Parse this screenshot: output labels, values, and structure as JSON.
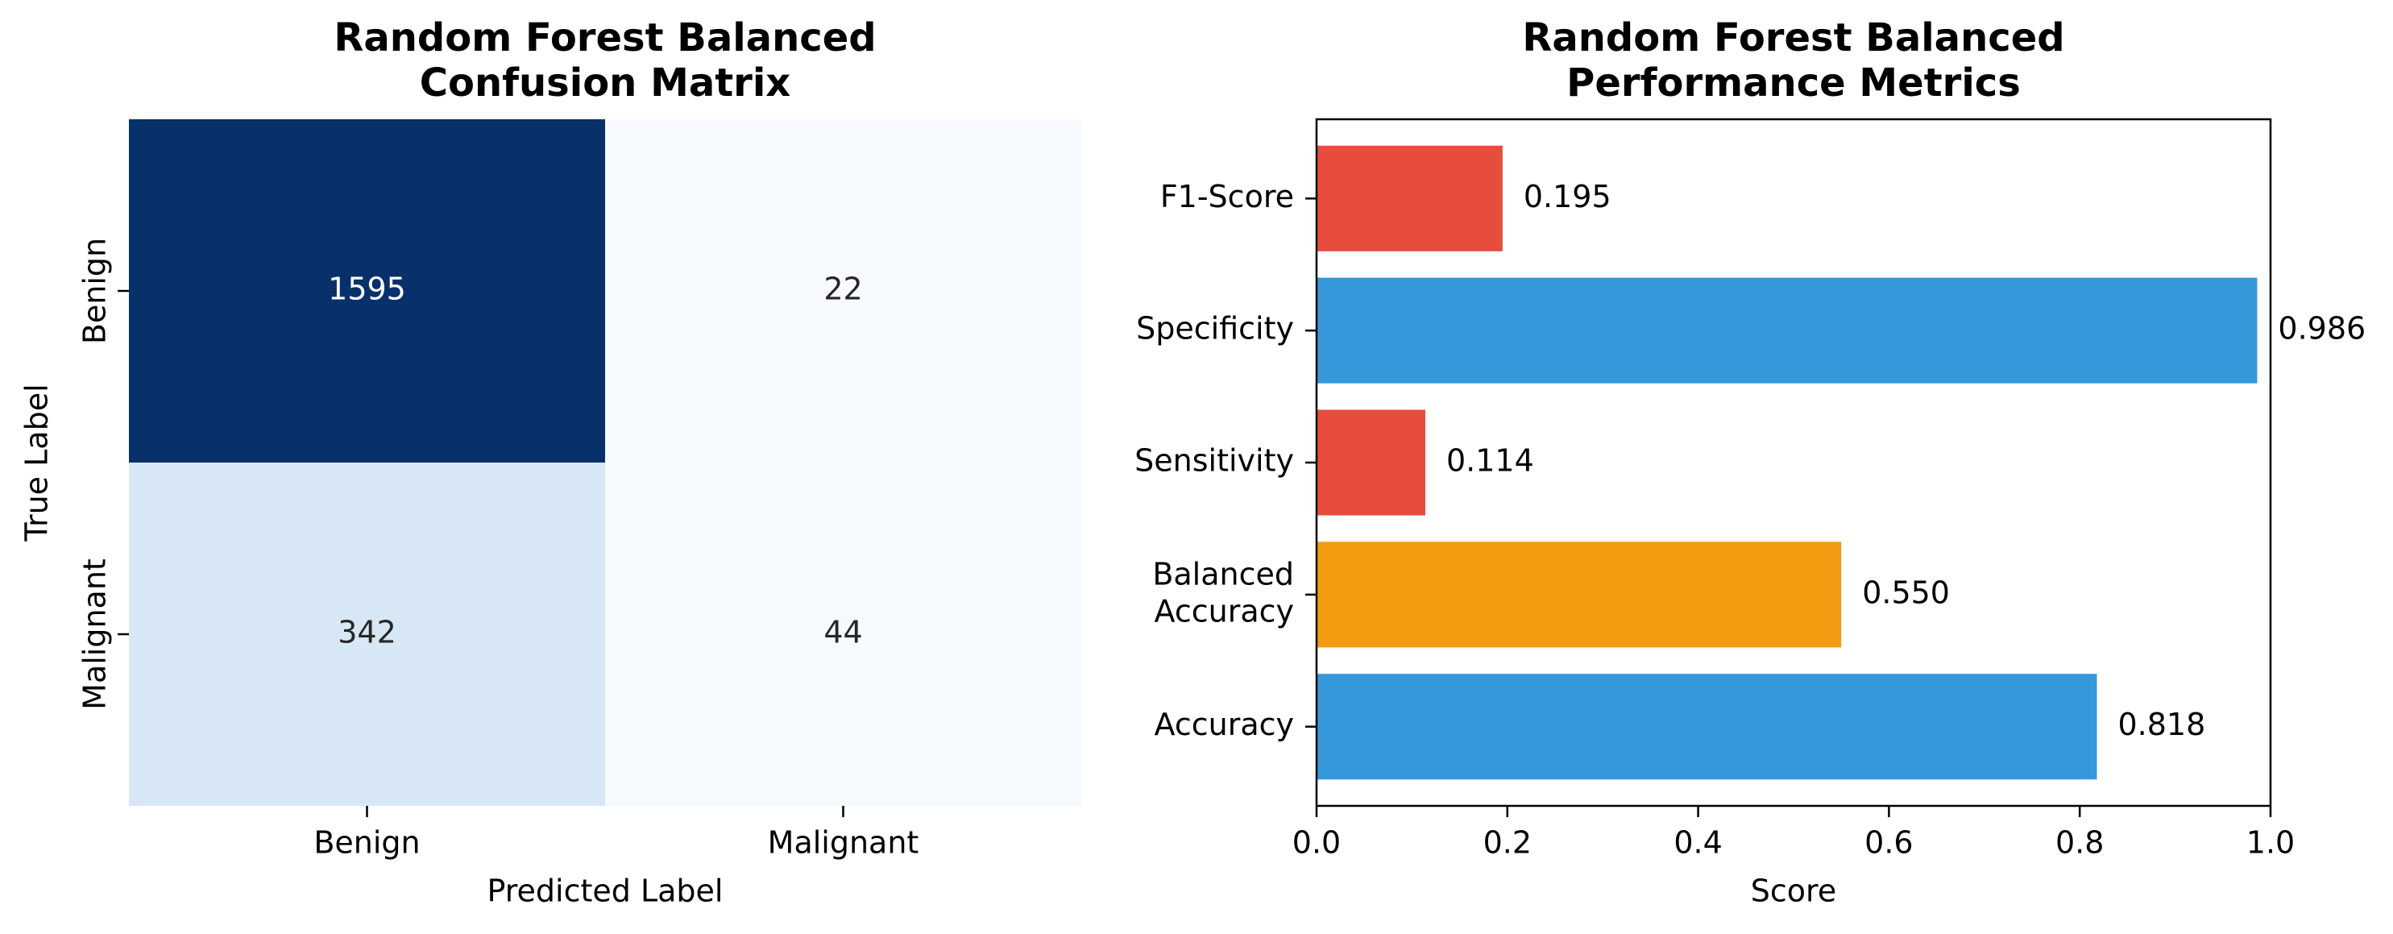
{
  "chart_data": [
    {
      "type": "heatmap",
      "title": "Random Forest Balanced\nConfusion Matrix",
      "xlabel": "Predicted Label",
      "ylabel": "True Label",
      "x_categories": [
        "Benign",
        "Malignant"
      ],
      "y_categories": [
        "Benign",
        "Malignant"
      ],
      "values": [
        [
          1595,
          22
        ],
        [
          342,
          44
        ]
      ],
      "colormap": "Blues",
      "colors": {
        "max": "#08306b",
        "mid_low": "#d1e2f3",
        "min": "#f7fbff",
        "text_dark": "#262626",
        "text_light": "#ffffff"
      }
    },
    {
      "type": "bar",
      "orientation": "horizontal",
      "title": "Random Forest Balanced\nPerformance Metrics",
      "xlabel": "Score",
      "ylabel": "",
      "categories": [
        "Accuracy",
        "Balanced\nAccuracy",
        "Sensitivity",
        "Specificity",
        "F1-Score"
      ],
      "values": [
        0.818,
        0.55,
        0.114,
        0.986,
        0.195
      ],
      "value_labels": [
        "0.818",
        "0.550",
        "0.114",
        "0.986",
        "0.195"
      ],
      "bar_colors": [
        "#3498db",
        "#f39c12",
        "#e74c3c",
        "#3498db",
        "#e74c3c"
      ],
      "xlim": [
        0,
        1.0
      ],
      "xticks": [
        "0.0",
        "0.2",
        "0.4",
        "0.6",
        "0.8",
        "1.0"
      ],
      "grid": false
    }
  ]
}
